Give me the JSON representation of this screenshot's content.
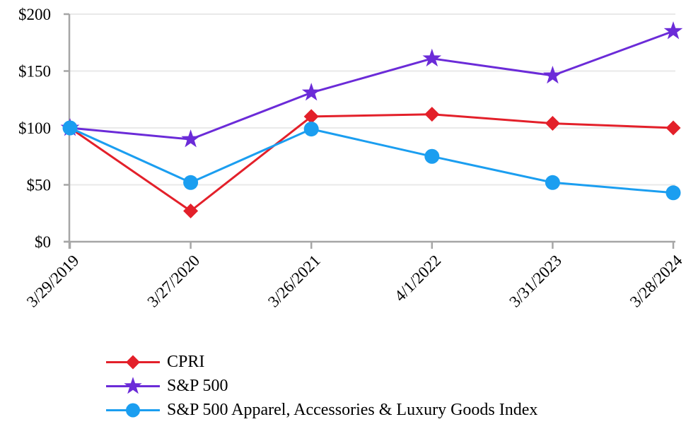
{
  "page": {
    "background_color": "#ffffff",
    "text_color": "#000000"
  },
  "chart_data": {
    "type": "line",
    "x_labels": [
      "3/29/2019",
      "3/27/2020",
      "3/26/2021",
      "4/1/2022",
      "3/31/2023",
      "3/28/2024"
    ],
    "y_tick_labels": [
      "$0",
      "$50",
      "$100",
      "$150",
      "$200"
    ],
    "y_tick_values": [
      0,
      50,
      100,
      150,
      200
    ],
    "ylim": [
      0,
      200
    ],
    "grid": true,
    "legend_position": "bottom-left",
    "axis_color": "#a6a6a6",
    "gridline_color": "#e9e9e9",
    "series": [
      {
        "name": "CPRI",
        "marker": "diamond",
        "color": "#e3202a",
        "values": [
          100,
          27,
          110,
          112,
          104,
          100
        ]
      },
      {
        "name": "S&P 500",
        "marker": "star",
        "color": "#6b2bd8",
        "values": [
          100,
          90,
          131,
          161,
          146,
          185
        ]
      },
      {
        "name": "S&P 500 Apparel, Accessories & Luxury Goods Index",
        "marker": "circle",
        "color": "#1b9ef0",
        "values": [
          100,
          52,
          99,
          75,
          52,
          43
        ]
      }
    ]
  }
}
